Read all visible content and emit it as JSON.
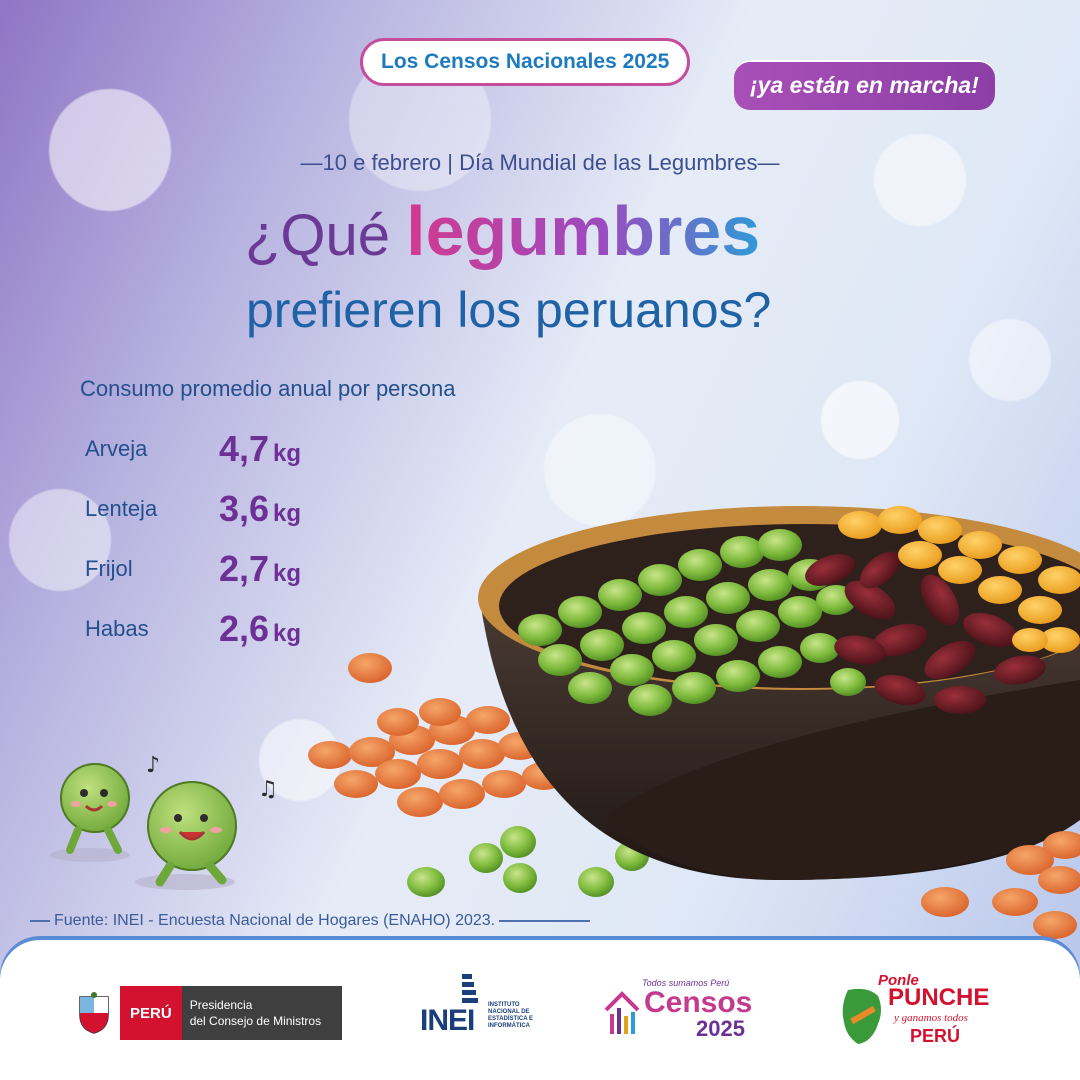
{
  "header": {
    "badge_top": "Los Censos Nacionales 2025",
    "badge_bottom": "¡ya están en marcha!"
  },
  "headline": {
    "date_line": "—10 e febrero | Día Mundial de las Legumbres—",
    "line1_prefix": "¿Qué ",
    "line1_highlight": "legumbres",
    "line2": "prefieren los peruanos?"
  },
  "consumo": {
    "title": "Consumo promedio anual por persona",
    "items": [
      {
        "name": "Arveja",
        "value": "4,7",
        "unit": "kg"
      },
      {
        "name": "Lenteja",
        "value": "3,6",
        "unit": "kg"
      },
      {
        "name": "Frijol",
        "value": "2,7",
        "unit": "kg"
      },
      {
        "name": "Habas",
        "value": "2,6",
        "unit": "kg"
      }
    ]
  },
  "source": "Fuente: INEI - Encuesta Nacional de Hogares (ENAHO) 2023.",
  "footer": {
    "peru": {
      "red_label": "PERÚ",
      "grey_line1": "Presidencia",
      "grey_line2": "del Consejo de Ministros"
    },
    "inei": {
      "word": "INEI",
      "sub": "INSTITUTO NACIONAL DE ESTADÍSTICA E INFORMÁTICA"
    },
    "censos": {
      "small": "Todos sumamos Perú",
      "word": "Censos",
      "year": "2025"
    },
    "punche": {
      "line1": "Ponle",
      "line2": "PUNCHE",
      "line3": "y ganamos todos",
      "line4": "PERÚ"
    }
  },
  "colors": {
    "brand_purple": "#6d3196",
    "brand_blue": "#1f63a6",
    "brand_magenta": "#c44d9c",
    "peru_red": "#d2122e"
  }
}
